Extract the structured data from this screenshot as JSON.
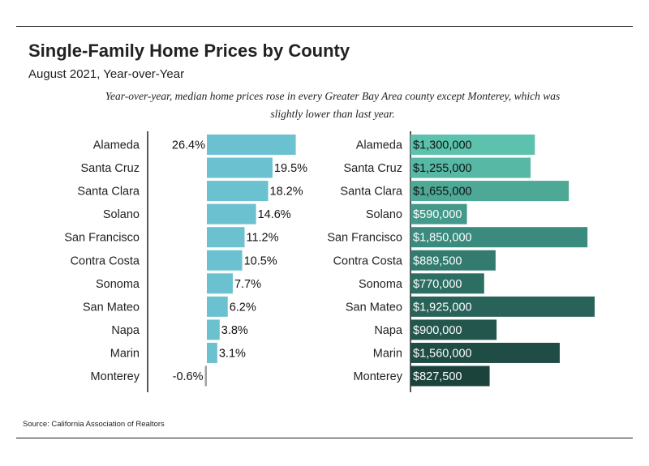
{
  "title": "Single-Family Home Prices by County",
  "subtitle": "August 2021, Year-over-Year",
  "note": "Year-over-year, median home prices rose in every Greater Bay Area county except Monterey, which was slightly lower than last year.",
  "source": "Source:  California Association of Realtors",
  "chart_data": [
    {
      "type": "bar",
      "orientation": "horizontal",
      "categories": [
        "Alameda",
        "Santa Cruz",
        "Santa Clara",
        "Solano",
        "San Francisco",
        "Contra Costa",
        "Sonoma",
        "San Mateo",
        "Napa",
        "Marin",
        "Monterey"
      ],
      "values": [
        26.4,
        19.5,
        18.2,
        14.6,
        11.2,
        10.5,
        7.7,
        6.2,
        3.8,
        3.1,
        -0.6
      ],
      "labels": [
        "26.4%",
        "19.5%",
        "18.2%",
        "14.6%",
        "11.2%",
        "10.5%",
        "7.7%",
        "6.2%",
        "3.8%",
        "3.1%",
        "-0.6%"
      ],
      "color": "#6bc1cf",
      "negative_color": "#a0a0a0"
    },
    {
      "type": "bar",
      "orientation": "horizontal",
      "categories": [
        "Alameda",
        "Santa Cruz",
        "Santa Clara",
        "Solano",
        "San Francisco",
        "Contra Costa",
        "Sonoma",
        "San Mateo",
        "Napa",
        "Marin",
        "Monterey"
      ],
      "values": [
        1300000,
        1255000,
        1655000,
        590000,
        1850000,
        889500,
        770000,
        1925000,
        900000,
        1560000,
        827500
      ],
      "labels": [
        "$1,300,000",
        "$1,255,000",
        "$1,655,000",
        "$590,000",
        "$1,850,000",
        "$889,500",
        "$770,000",
        "$1,925,000",
        "$900,000",
        "$1,560,000",
        "$827,500"
      ],
      "colors": [
        "#5cc2ad",
        "#56b8a5",
        "#4da896",
        "#43998a",
        "#3a8a7d",
        "#337b6f",
        "#2d6e63",
        "#286258",
        "#23564d",
        "#1f4c44",
        "#1b433c"
      ]
    }
  ]
}
